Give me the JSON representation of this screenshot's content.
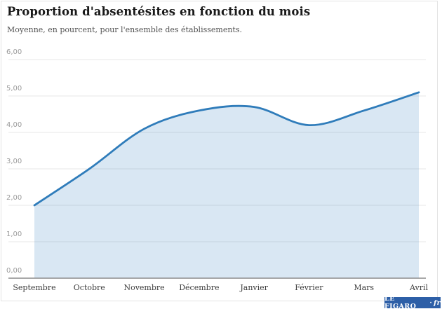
{
  "header": {
    "title": "Proportion d'absentésites en fonction du mois",
    "subtitle": "Moyenne, en pourcent, pour l'ensemble des établissements."
  },
  "chart_data": {
    "type": "area",
    "title": "Proportion d'absentésites en fonction du mois",
    "subtitle": "Moyenne, en pourcent, pour l'ensemble des établissements.",
    "categories": [
      "Septembre",
      "Octobre",
      "Novembre",
      "Décembre",
      "Janvier",
      "Février",
      "Mars",
      "Avril"
    ],
    "values": [
      2.0,
      3.0,
      4.1,
      4.6,
      4.7,
      4.2,
      4.6,
      5.1
    ],
    "unit": "pourcent",
    "ylim": [
      0,
      6
    ],
    "yticks": [
      {
        "value": 6,
        "label": "6,00"
      },
      {
        "value": 5,
        "label": "5,00"
      },
      {
        "value": 4,
        "label": "4,00"
      },
      {
        "value": 3,
        "label": "3,00"
      },
      {
        "value": 2,
        "label": "2,00"
      },
      {
        "value": 1,
        "label": "1,00"
      },
      {
        "value": 0,
        "label": "0,00"
      }
    ],
    "grid": true,
    "legend": "none",
    "line_color": "#2f7cba",
    "fill_color": "rgba(47,124,186,0.18)",
    "gridline_color": "#e7e7e7",
    "baseline_color": "#8c8c8c"
  },
  "footer": {
    "logo_main": "LE FIGARO",
    "logo_sep": "·",
    "logo_suffix": "fr",
    "logo_bg": "#2d5fa7"
  }
}
